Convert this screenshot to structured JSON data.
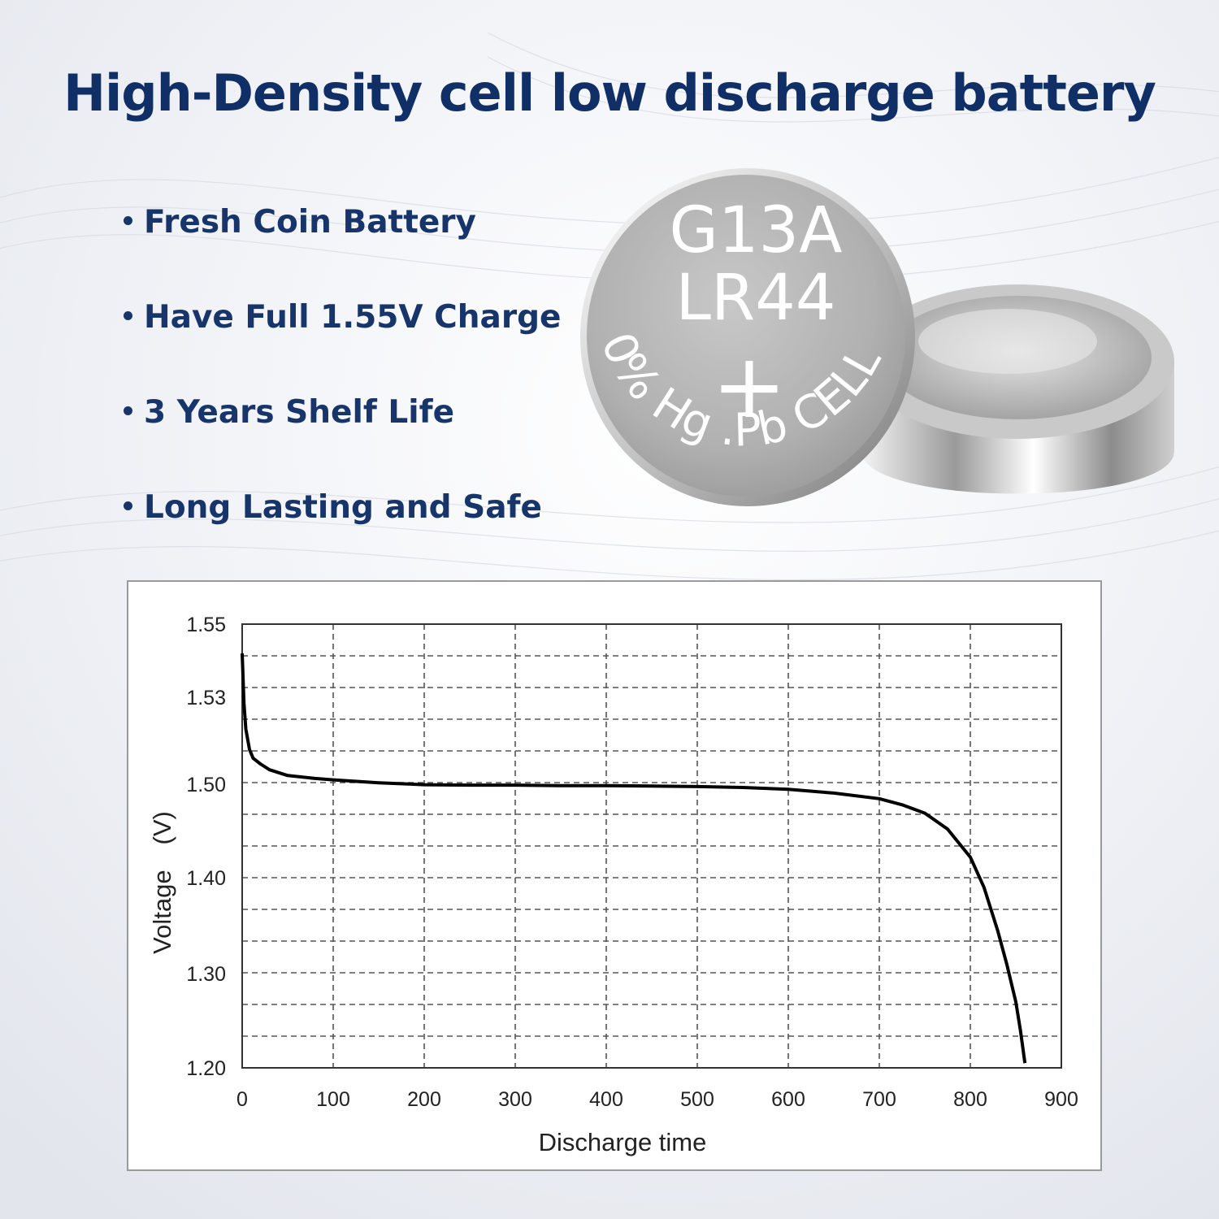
{
  "headline": "High-Density cell low discharge battery",
  "features": [
    "Fresh Coin Battery",
    "Have Full 1.55V Charge",
    "3 Years Shelf Life",
    "Long Lasting and Safe"
  ],
  "battery": {
    "line1": "G13A",
    "line2": "LR44",
    "plus": "+",
    "arc_text": "0% Hg .Pb CELL"
  },
  "colors": {
    "headline": "#0f2f66",
    "feature_text": "#17356b",
    "curve": "#000000",
    "grid": "#555555"
  },
  "chart_data": {
    "type": "line",
    "xlabel": "Discharge time",
    "ylabel": "Voltage　(V)",
    "x_ticks": [
      0,
      100,
      200,
      300,
      400,
      500,
      600,
      700,
      800,
      900
    ],
    "y_ticks": [
      1.2,
      1.3,
      1.4,
      1.5,
      1.53,
      1.55
    ],
    "y_tick_labels": [
      "1.20",
      "1.30",
      "1.40",
      "1.50",
      "1.53",
      "1.55"
    ],
    "xlim": [
      0,
      900
    ],
    "ylim": [
      1.2,
      1.55
    ],
    "grid": true,
    "grid_style": "dashed",
    "series": [
      {
        "x": [
          0,
          2,
          4,
          8,
          12,
          20,
          30,
          50,
          80,
          100,
          150,
          200,
          250,
          300,
          350,
          400,
          450,
          500,
          550,
          600,
          650,
          700,
          725,
          750,
          775,
          800,
          815,
          830,
          840,
          850,
          855,
          860
        ],
        "y": [
          1.542,
          1.528,
          1.519,
          1.512,
          1.509,
          1.507,
          1.505,
          1.503,
          1.502,
          1.5015,
          1.5005,
          1.4995,
          1.499,
          1.499,
          1.4985,
          1.4985,
          1.498,
          1.4975,
          1.4965,
          1.4945,
          1.4905,
          1.4845,
          1.478,
          1.469,
          1.452,
          1.422,
          1.39,
          1.345,
          1.31,
          1.27,
          1.24,
          1.205
        ]
      }
    ]
  }
}
